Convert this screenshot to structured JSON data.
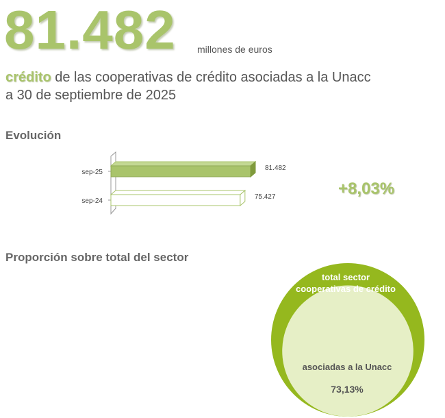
{
  "headline": {
    "value": "81.482",
    "unit": "millones de euros"
  },
  "subtitle": {
    "highlight": "crédito",
    "rest": " de las cooperativas de crédito asociadas a la Unacc",
    "line2": "a 30 de septiembre de 2025"
  },
  "evolucion": {
    "title": "Evolución",
    "change": "+8,03%"
  },
  "proporcion": {
    "title": "Proporción sobre total del sector",
    "outer_line1": "total sector",
    "outer_line2": "cooperativas de crédito",
    "inner_label": "asociadas a la Unacc",
    "inner_value": "73,13%",
    "share": 0.7313
  },
  "colors": {
    "accent": "#a9c46b",
    "outer_circle": "#95b81e",
    "inner_circle": "#e6efc6",
    "text": "#555555"
  },
  "chart_data": [
    {
      "type": "bar",
      "orientation": "horizontal",
      "categories": [
        "sep-25",
        "sep-24"
      ],
      "values": [
        81482,
        75427
      ],
      "value_labels": [
        "81.482",
        "75.427"
      ],
      "xlim": [
        0,
        81482
      ],
      "grid": false,
      "styles": [
        "filled",
        "outline"
      ]
    }
  ]
}
